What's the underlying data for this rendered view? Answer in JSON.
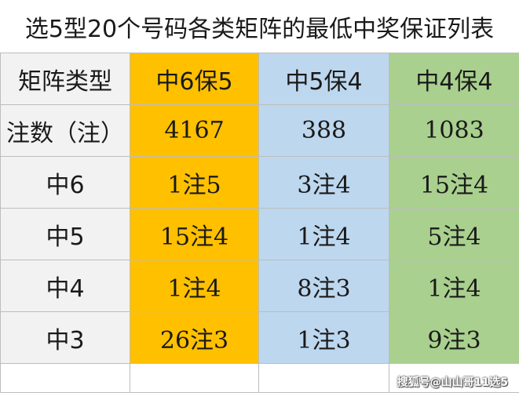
{
  "title": "选5型20个号码各类矩阵的最低中奖保证列表",
  "columns": [
    "矩阵类型",
    "中6保5",
    "中5保4",
    "中4保4"
  ],
  "rows": [
    {
      "label": "注数（注）",
      "values": [
        "4167",
        "388",
        "1083"
      ]
    },
    {
      "label": "中6",
      "values": [
        "1注5",
        "3注4",
        "15注4"
      ]
    },
    {
      "label": "中5",
      "values": [
        "15注4",
        "1注4",
        "5注4"
      ]
    },
    {
      "label": "中4",
      "values": [
        "1注4",
        "8注3",
        "1注4"
      ]
    },
    {
      "label": "中3",
      "values": [
        "26注3",
        "1注3",
        "9注3"
      ]
    }
  ],
  "watermark": "搜狐号@山山哥11选5",
  "colors": {
    "label_column": "#f2f2f2",
    "column_1": "#ffc000",
    "column_2": "#bdd7ee",
    "column_3": "#a9d08e",
    "border": "#bdbdbd"
  }
}
